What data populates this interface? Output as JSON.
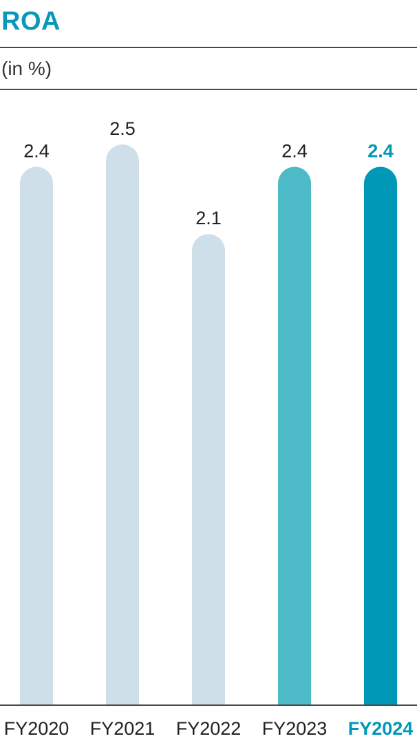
{
  "chart_data": {
    "type": "bar",
    "title": "ROA",
    "unit_label": "(in %)",
    "categories": [
      "FY2020",
      "FY2021",
      "FY2022",
      "FY2023",
      "FY2024"
    ],
    "values": [
      2.4,
      2.5,
      2.1,
      2.4,
      2.4
    ],
    "value_labels": [
      "2.4",
      "2.5",
      "2.1",
      "2.4",
      "2.4"
    ],
    "highlight_index": 4,
    "xlabel": "",
    "ylabel": "",
    "ylim": [
      0,
      2.5
    ],
    "grid": false,
    "legend": "none",
    "colors": {
      "default_bar": "#cfdfea",
      "previous_year_bar": "#4dbac8",
      "current_year_bar": "#0098b7",
      "title": "#0a98b8",
      "highlight_text": "#0098b7",
      "text": "#222222",
      "rule": "#4a4a4a"
    }
  }
}
